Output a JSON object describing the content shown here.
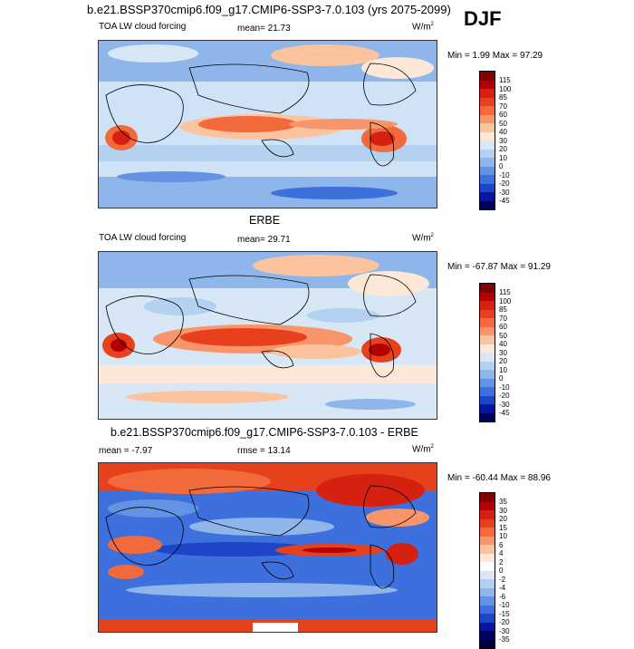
{
  "figure": {
    "title": "b.e21.BSSP370cmip6.f09_g17.CMIP6-SSP3-7.0.103 (yrs 2075-2099)",
    "season": "DJF"
  },
  "panels": [
    {
      "id": "model",
      "variable": "TOA LW cloud forcing",
      "stat_text": "mean=  21.73",
      "units": "W/m",
      "units_sup": "2",
      "minmax": "Min =   1.99 Max =  97.29",
      "colorbar_labels": [
        "115",
        "100",
        "85",
        "70",
        "60",
        "50",
        "40",
        "30",
        "20",
        "10",
        "0",
        "-10",
        "-20",
        "-30",
        "-45"
      ],
      "colors": [
        "#7f0000",
        "#b30000",
        "#d62010",
        "#e6401c",
        "#f26a3c",
        "#f9956a",
        "#fcc39f",
        "#fde8d8",
        "#d7e7f6",
        "#b3d1f0",
        "#8fb6ea",
        "#6393e4",
        "#3d6fdd",
        "#1c46c7",
        "#06169e",
        "#000060"
      ]
    },
    {
      "id": "obs",
      "title": "ERBE",
      "variable": "TOA LW cloud forcing",
      "stat_text": "mean=  29.71",
      "units": "W/m",
      "units_sup": "2",
      "minmax": "Min = -67.87 Max =  91.29",
      "colorbar_labels": [
        "115",
        "100",
        "85",
        "70",
        "60",
        "50",
        "40",
        "30",
        "20",
        "10",
        "0",
        "-10",
        "-20",
        "-30",
        "-45"
      ],
      "colors": [
        "#7f0000",
        "#b30000",
        "#d62010",
        "#e6401c",
        "#f26a3c",
        "#f9956a",
        "#fcc39f",
        "#fde8d8",
        "#d7e7f6",
        "#b3d1f0",
        "#8fb6ea",
        "#6393e4",
        "#3d6fdd",
        "#1c46c7",
        "#06169e",
        "#000060"
      ]
    },
    {
      "id": "diff",
      "title": "b.e21.BSSP370cmip6.f09_g17.CMIP6-SSP3-7.0.103 - ERBE",
      "stat_text": "mean =  -7.97",
      "rmse_text": "rmse =  13.14",
      "units": "W/m",
      "units_sup": "2",
      "minmax": "Min = -60.44 Max =  88.96",
      "colorbar_labels": [
        "35",
        "30",
        "20",
        "15",
        "10",
        "6",
        "4",
        "2",
        "0",
        "-2",
        "-4",
        "-6",
        "-10",
        "-15",
        "-20",
        "-30",
        "-35"
      ],
      "colors": [
        "#7f0000",
        "#b30000",
        "#d62010",
        "#e6401c",
        "#f26a3c",
        "#f9956a",
        "#fcc39f",
        "#fde8d8",
        "#ffffff",
        "#d7e7f6",
        "#b3d1f0",
        "#8fb6ea",
        "#6393e4",
        "#3d6fdd",
        "#1c46c7",
        "#06169e",
        "#000060",
        "#000040"
      ]
    }
  ]
}
